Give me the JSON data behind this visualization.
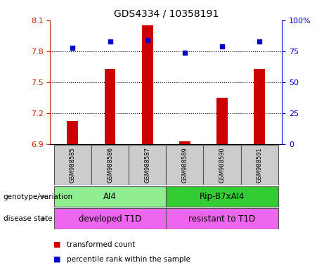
{
  "title": "GDS4334 / 10358191",
  "samples": [
    "GSM988585",
    "GSM988586",
    "GSM988587",
    "GSM988589",
    "GSM988590",
    "GSM988591"
  ],
  "bar_values": [
    7.13,
    7.63,
    8.05,
    6.93,
    7.35,
    7.63
  ],
  "percentile_values": [
    78,
    83,
    84,
    74,
    79,
    83
  ],
  "bar_color": "#cc0000",
  "dot_color": "#0000cc",
  "bar_base": 6.9,
  "ylim_left": [
    6.9,
    8.1
  ],
  "ylim_right": [
    0,
    100
  ],
  "yticks_left": [
    6.9,
    7.2,
    7.5,
    7.8,
    8.1
  ],
  "yticks_right": [
    0,
    25,
    50,
    75,
    100
  ],
  "hlines": [
    7.2,
    7.5,
    7.8
  ],
  "genotype_labels": [
    "AI4",
    "Rip-B7xAI4"
  ],
  "genotype_colors": [
    "#90ee90",
    "#33cc33"
  ],
  "disease_labels": [
    "developed T1D",
    "resistant to T1D"
  ],
  "disease_color": "#ee66ee",
  "label_row1": "genotype/variation",
  "label_row2": "disease state",
  "legend_red": "transformed count",
  "legend_blue": "percentile rank within the sample",
  "ax_left_color": "#cc2200",
  "ax_right_color": "#0000cc",
  "sample_box_color": "#cccccc",
  "title_fontsize": 10,
  "tick_fontsize": 8,
  "bar_width": 0.3
}
